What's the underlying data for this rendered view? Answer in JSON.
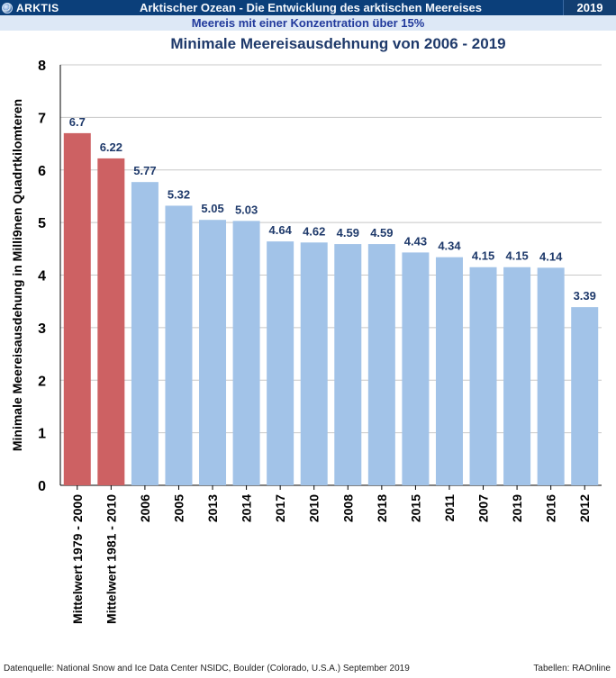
{
  "header": {
    "brand": "ARKTIS",
    "title": "Arktischer Ozean - Die Entwicklung des arktischen Meereises",
    "year": "2019",
    "subtitle": "Meereis mit einer Konzentration über 15%"
  },
  "colors": {
    "average": "#cd6163",
    "year": "#a2c3e8",
    "grid": "#c8c8c8",
    "title": "#1f3a6b",
    "label": "#1f3a6b",
    "axis": "#000000"
  },
  "chart_data": {
    "type": "bar",
    "title": "Minimale Meereisausdehnung von 2006 - 2019",
    "ylabel": "Minimale Meereisausdehung in Milli9nen  Quadrtkilomteren",
    "xlabel": "",
    "ylim": [
      0,
      8
    ],
    "yticks": [
      0,
      1,
      2,
      3,
      4,
      5,
      6,
      7,
      8
    ],
    "grid": true,
    "categories": [
      "Mittelwert 1979 - 2000",
      "Mittelwert 1981 - 2010",
      "2006",
      "2005",
      "2013",
      "2014",
      "2017",
      "2010",
      "2008",
      "2018",
      "2015",
      "2011",
      "2007",
      "2019",
      "2016",
      "2012"
    ],
    "values": [
      6.7,
      6.22,
      5.77,
      5.32,
      5.05,
      5.03,
      4.64,
      4.62,
      4.59,
      4.59,
      4.43,
      4.34,
      4.15,
      4.15,
      4.14,
      3.39
    ],
    "value_labels": [
      "6.7",
      "6.22",
      "5.77",
      "5.32",
      "5.05",
      "5.03",
      "4.64",
      "4.62",
      "4.59",
      "4.59",
      "4.43",
      "4.34",
      "4.15",
      "4.15",
      "4.14",
      "3.39"
    ],
    "highlight": [
      true,
      true,
      false,
      false,
      false,
      false,
      false,
      false,
      false,
      false,
      false,
      false,
      false,
      false,
      false,
      false
    ]
  },
  "footer": {
    "source": "Datenquelle:  National Snow and Ice Data Center NSIDC, Boulder (Colorado, U.S.A.)  September 2019",
    "credit": "Tabellen: RAOnline"
  }
}
